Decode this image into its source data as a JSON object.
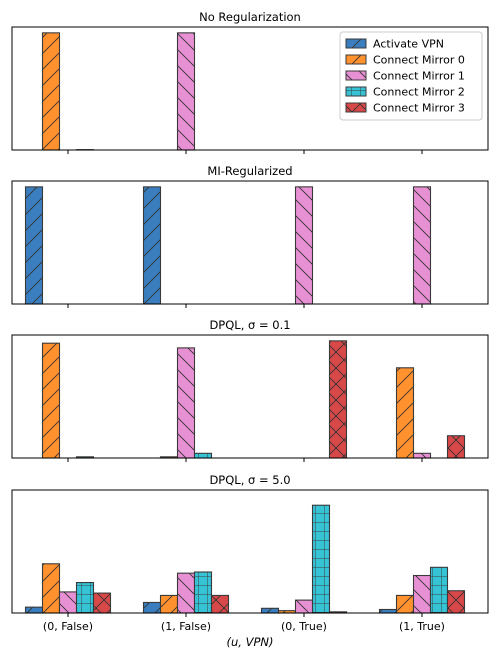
{
  "chart_data": [
    {
      "type": "bar",
      "title": "No Regularization",
      "categories": [
        "(0, False)",
        "(1, False)",
        "(0, True)",
        "(1, True)"
      ],
      "series": [
        {
          "name": "Activate VPN",
          "values": [
            0.0,
            0.0,
            0.0,
            0.0
          ]
        },
        {
          "name": "Connect Mirror 0",
          "values": [
            1.0,
            0.0,
            0.0,
            0.0
          ]
        },
        {
          "name": "Connect Mirror 1",
          "values": [
            0.0,
            1.0,
            0.0,
            0.0
          ]
        },
        {
          "name": "Connect Mirror 2",
          "values": [
            0.003,
            0.0,
            0.0,
            0.0
          ]
        },
        {
          "name": "Connect Mirror 3",
          "values": [
            0.0,
            0.0,
            0.0,
            0.0
          ]
        }
      ],
      "ylim": [
        0,
        1.05
      ],
      "legend": "top-right"
    },
    {
      "type": "bar",
      "title": "MI-Regularized",
      "categories": [
        "(0, False)",
        "(1, False)",
        "(0, True)",
        "(1, True)"
      ],
      "series": [
        {
          "name": "Activate VPN",
          "values": [
            1.0,
            1.0,
            0.0,
            0.0
          ]
        },
        {
          "name": "Connect Mirror 0",
          "values": [
            0.0,
            0.0,
            0.0,
            0.0
          ]
        },
        {
          "name": "Connect Mirror 1",
          "values": [
            0.0,
            0.0,
            1.0,
            1.0
          ]
        },
        {
          "name": "Connect Mirror 2",
          "values": [
            0.0,
            0.0,
            0.0,
            0.0
          ]
        },
        {
          "name": "Connect Mirror 3",
          "values": [
            0.0,
            0.0,
            0.0,
            0.0
          ]
        }
      ],
      "ylim": [
        0,
        1.05
      ]
    },
    {
      "type": "bar",
      "title": "DPQL, σ = 0.1",
      "categories": [
        "(0, False)",
        "(1, False)",
        "(0, True)",
        "(1, True)"
      ],
      "series": [
        {
          "name": "Activate VPN",
          "values": [
            0.0,
            0.0,
            0.0,
            0.0
          ]
        },
        {
          "name": "Connect Mirror 0",
          "values": [
            0.98,
            0.01,
            0.0,
            0.77
          ]
        },
        {
          "name": "Connect Mirror 1",
          "values": [
            0.0,
            0.94,
            0.0,
            0.04
          ]
        },
        {
          "name": "Connect Mirror 2",
          "values": [
            0.01,
            0.04,
            0.0,
            0.0
          ]
        },
        {
          "name": "Connect Mirror 3",
          "values": [
            0.0,
            0.0,
            1.0,
            0.19
          ]
        }
      ],
      "ylim": [
        0,
        1.05
      ]
    },
    {
      "type": "bar",
      "title": "DPQL, σ = 5.0",
      "categories": [
        "(0, False)",
        "(1, False)",
        "(0, True)",
        "(1, True)"
      ],
      "series": [
        {
          "name": "Activate VPN",
          "values": [
            0.05,
            0.09,
            0.04,
            0.03
          ]
        },
        {
          "name": "Connect Mirror 0",
          "values": [
            0.42,
            0.15,
            0.02,
            0.15
          ]
        },
        {
          "name": "Connect Mirror 1",
          "values": [
            0.18,
            0.34,
            0.11,
            0.32
          ]
        },
        {
          "name": "Connect Mirror 2",
          "values": [
            0.26,
            0.35,
            0.92,
            0.39
          ]
        },
        {
          "name": "Connect Mirror 3",
          "values": [
            0.17,
            0.15,
            0.01,
            0.19
          ]
        }
      ],
      "ylim": [
        0,
        1.05
      ]
    }
  ],
  "xlabel": "(u, VPN)",
  "colors": [
    "#3a7ebf",
    "#ff922e",
    "#e890d4",
    "#37c3d6",
    "#d94848"
  ],
  "hatches": [
    "slash-lines",
    "slash-lines",
    "backslash-lines",
    "grid",
    "cross"
  ]
}
